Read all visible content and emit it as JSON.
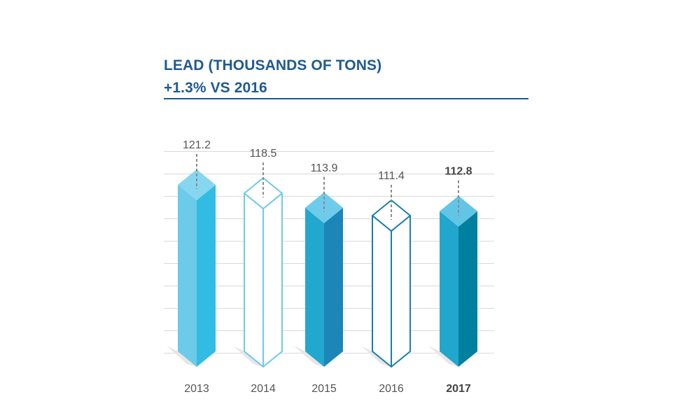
{
  "title": "LEAD (THOUSANDS OF TONS)",
  "subtitle": "+1.3% VS 2016",
  "colors": {
    "title": "#1f5a92",
    "rule": "#1f5a92",
    "grid": "#d9d9d9",
    "leader": "#8a8a8a",
    "text": "#555555"
  },
  "chart_data": {
    "type": "bar",
    "categories": [
      "2013",
      "2014",
      "2015",
      "2016",
      "2017"
    ],
    "values": [
      121.2,
      118.5,
      113.9,
      111.4,
      112.8
    ],
    "value_labels": [
      "121.2",
      "118.5",
      "113.9",
      "111.4",
      "112.8"
    ],
    "title": "LEAD (THOUSANDS OF TONS)",
    "subtitle": "+1.3% VS 2016",
    "xlabel": "",
    "ylabel": "",
    "grid": true,
    "legend": "none",
    "highlight_category": "2017",
    "styles": [
      {
        "fill": "solid",
        "front": "#6ccbe9",
        "side": "#33bce3",
        "top": "#86d6ef",
        "stroke": ""
      },
      {
        "fill": "outline",
        "front": "#ffffff",
        "side": "#ffffff",
        "top": "#ffffff",
        "stroke": "#6ccbe9"
      },
      {
        "fill": "solid",
        "front": "#22a7cf",
        "side": "#1d86b8",
        "top": "#6fcbea",
        "stroke": ""
      },
      {
        "fill": "outline",
        "front": "#ffffff",
        "side": "#ffffff",
        "top": "#ffffff",
        "stroke": "#1a7fa8"
      },
      {
        "fill": "solid",
        "front": "#21a6cd",
        "side": "#00809f",
        "top": "#62c5e6",
        "stroke": ""
      }
    ]
  }
}
